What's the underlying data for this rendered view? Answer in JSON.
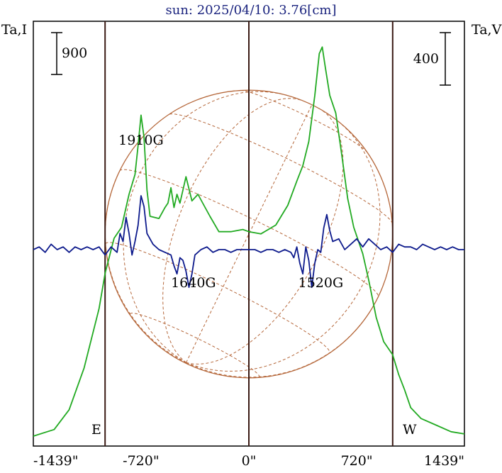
{
  "chart_data": {
    "type": "line",
    "title": "sun: 2025/04/10: 3.76[cm]",
    "left_axis_label": "Ta,I",
    "right_axis_label": "Ta,V",
    "left_scale_label": "900",
    "right_scale_label": "400",
    "left_scale_value": 900,
    "right_scale_value": 400,
    "xlim": [
      -1439,
      1439
    ],
    "x_tick_labels": [
      "-1439\"",
      "-720\"",
      "0\"",
      "720\"",
      "1439\""
    ],
    "x_ticks": [
      -1439,
      -720,
      0,
      720,
      1439
    ],
    "vertical_lines": [
      -960,
      0,
      960
    ],
    "limb_labels": {
      "east": "E",
      "west": "W"
    },
    "solar_radius_arcsec": 960,
    "region_labels": [
      {
        "text": "1910G",
        "x": -720,
        "y": 0.39
      },
      {
        "text": "1640G",
        "x": -370,
        "y": -0.14
      },
      {
        "text": "1520G",
        "x": 480,
        "y": -0.14
      }
    ],
    "series": [
      {
        "id": "intensity",
        "color": "#22aa22",
        "points": [
          [
            -1439,
            0.0
          ],
          [
            -1300,
            0.03
          ],
          [
            -1200,
            0.12
          ],
          [
            -1100,
            0.31
          ],
          [
            -1000,
            0.58
          ],
          [
            -960,
            0.74
          ],
          [
            -900,
            0.9
          ],
          [
            -850,
            0.95
          ],
          [
            -800,
            1.1
          ],
          [
            -760,
            1.19
          ],
          [
            -740,
            1.32
          ],
          [
            -720,
            1.46
          ],
          [
            -700,
            1.36
          ],
          [
            -680,
            1.12
          ],
          [
            -660,
            1.0
          ],
          [
            -600,
            0.99
          ],
          [
            -560,
            1.04
          ],
          [
            -540,
            1.06
          ],
          [
            -520,
            1.13
          ],
          [
            -500,
            1.04
          ],
          [
            -480,
            1.1
          ],
          [
            -460,
            1.06
          ],
          [
            -420,
            1.18
          ],
          [
            -380,
            1.07
          ],
          [
            -340,
            1.1
          ],
          [
            -300,
            1.05
          ],
          [
            -260,
            1.0
          ],
          [
            -200,
            0.93
          ],
          [
            -120,
            0.93
          ],
          [
            -40,
            0.94
          ],
          [
            0,
            0.93
          ],
          [
            80,
            0.92
          ],
          [
            180,
            0.96
          ],
          [
            260,
            1.05
          ],
          [
            320,
            1.16
          ],
          [
            360,
            1.23
          ],
          [
            400,
            1.34
          ],
          [
            440,
            1.55
          ],
          [
            470,
            1.74
          ],
          [
            490,
            1.77
          ],
          [
            510,
            1.68
          ],
          [
            540,
            1.55
          ],
          [
            580,
            1.47
          ],
          [
            620,
            1.28
          ],
          [
            660,
            1.08
          ],
          [
            700,
            0.95
          ],
          [
            760,
            0.83
          ],
          [
            800,
            0.71
          ],
          [
            850,
            0.54
          ],
          [
            900,
            0.43
          ],
          [
            960,
            0.37
          ],
          [
            1000,
            0.28
          ],
          [
            1040,
            0.21
          ],
          [
            1080,
            0.13
          ],
          [
            1150,
            0.08
          ],
          [
            1250,
            0.05
          ],
          [
            1350,
            0.02
          ],
          [
            1439,
            0.01
          ]
        ]
      },
      {
        "id": "polarization",
        "color": "#0d1a8c",
        "points": [
          [
            -1439,
            0.0
          ],
          [
            -1400,
            0.01
          ],
          [
            -1360,
            -0.01
          ],
          [
            -1320,
            0.02
          ],
          [
            -1280,
            0.0
          ],
          [
            -1240,
            0.01
          ],
          [
            -1200,
            -0.01
          ],
          [
            -1160,
            0.01
          ],
          [
            -1120,
            0.0
          ],
          [
            -1080,
            0.01
          ],
          [
            -1040,
            0.0
          ],
          [
            -1000,
            0.01
          ],
          [
            -960,
            -0.02
          ],
          [
            -920,
            0.01
          ],
          [
            -880,
            -0.01
          ],
          [
            -860,
            0.06
          ],
          [
            -840,
            0.03
          ],
          [
            -820,
            0.12
          ],
          [
            -800,
            0.06
          ],
          [
            -780,
            -0.02
          ],
          [
            -760,
            0.03
          ],
          [
            -740,
            0.09
          ],
          [
            -720,
            0.2
          ],
          [
            -700,
            0.16
          ],
          [
            -680,
            0.06
          ],
          [
            -640,
            0.02
          ],
          [
            -600,
            0.0
          ],
          [
            -560,
            -0.01
          ],
          [
            -520,
            -0.02
          ],
          [
            -500,
            -0.06
          ],
          [
            -480,
            -0.09
          ],
          [
            -460,
            -0.03
          ],
          [
            -440,
            -0.04
          ],
          [
            -420,
            -0.08
          ],
          [
            -400,
            -0.14
          ],
          [
            -380,
            -0.09
          ],
          [
            -360,
            -0.02
          ],
          [
            -320,
            0.0
          ],
          [
            -280,
            0.01
          ],
          [
            -240,
            -0.01
          ],
          [
            -200,
            0.0
          ],
          [
            -160,
            0.0
          ],
          [
            -120,
            -0.01
          ],
          [
            -80,
            0.0
          ],
          [
            -40,
            0.0
          ],
          [
            0,
            0.0
          ],
          [
            40,
            0.0
          ],
          [
            80,
            -0.01
          ],
          [
            120,
            0.0
          ],
          [
            160,
            0.0
          ],
          [
            200,
            -0.01
          ],
          [
            240,
            0.0
          ],
          [
            280,
            -0.01
          ],
          [
            300,
            -0.03
          ],
          [
            320,
            0.01
          ],
          [
            340,
            -0.05
          ],
          [
            360,
            -0.09
          ],
          [
            380,
            0.01
          ],
          [
            400,
            -0.04
          ],
          [
            420,
            -0.14
          ],
          [
            440,
            -0.05
          ],
          [
            460,
            0.0
          ],
          [
            480,
            -0.01
          ],
          [
            500,
            0.08
          ],
          [
            520,
            0.13
          ],
          [
            540,
            0.07
          ],
          [
            560,
            0.03
          ],
          [
            600,
            0.04
          ],
          [
            640,
            0.0
          ],
          [
            680,
            0.02
          ],
          [
            720,
            0.04
          ],
          [
            760,
            0.01
          ],
          [
            800,
            0.04
          ],
          [
            840,
            0.02
          ],
          [
            880,
            0.0
          ],
          [
            920,
            0.01
          ],
          [
            960,
            -0.01
          ],
          [
            1000,
            0.02
          ],
          [
            1040,
            0.01
          ],
          [
            1080,
            0.01
          ],
          [
            1120,
            0.0
          ],
          [
            1160,
            0.02
          ],
          [
            1200,
            0.01
          ],
          [
            1240,
            0.0
          ],
          [
            1280,
            0.01
          ],
          [
            1320,
            0.0
          ],
          [
            1360,
            0.01
          ],
          [
            1400,
            0.0
          ],
          [
            1439,
            0.0
          ]
        ]
      }
    ]
  }
}
